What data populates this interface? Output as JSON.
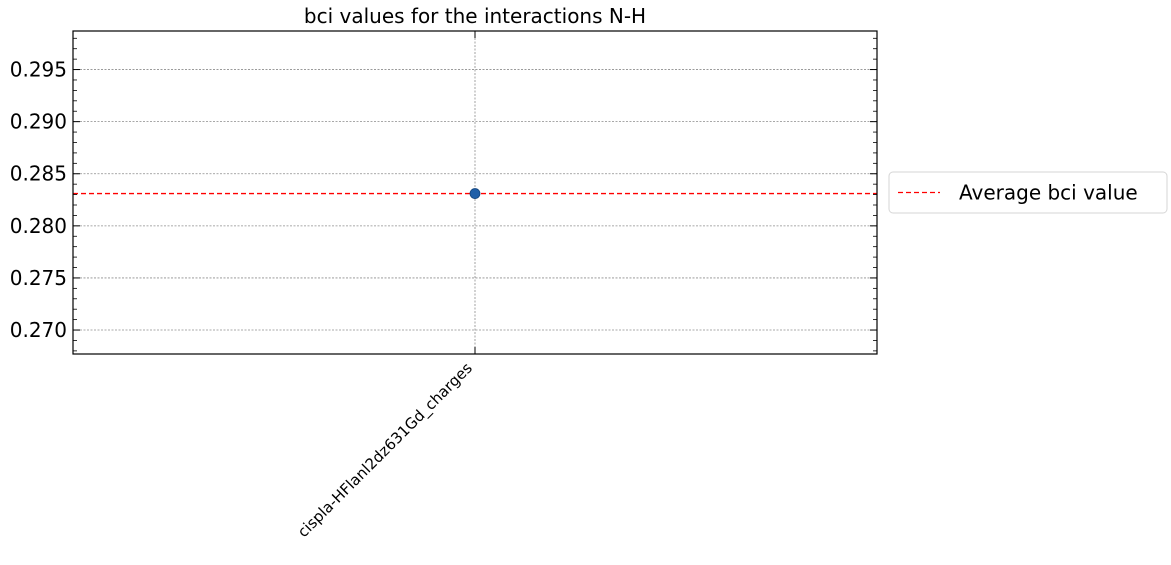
{
  "chart_data": {
    "type": "scatter",
    "title": "bci values for the interactions N-H",
    "xlabel": "",
    "ylabel": "",
    "categories": [
      "cispla-HFlanl2dz631Gd_charges"
    ],
    "series": [
      {
        "values": [
          0.2831
        ],
        "color": "#1f5fa8"
      }
    ],
    "reference_lines": [
      {
        "name": "Average bci value",
        "value": 0.2831,
        "color": "#ff0000",
        "style": "dashed"
      }
    ],
    "ylim": [
      0.2677,
      0.2987
    ],
    "yticks": [
      0.27,
      0.275,
      0.28,
      0.285,
      0.29,
      0.295
    ],
    "ytick_labels": [
      "0.270",
      "0.275",
      "0.280",
      "0.285",
      "0.290",
      "0.295"
    ],
    "grid": true,
    "legend": {
      "placement": "outside-right",
      "entries": [
        "Average bci value"
      ]
    }
  }
}
